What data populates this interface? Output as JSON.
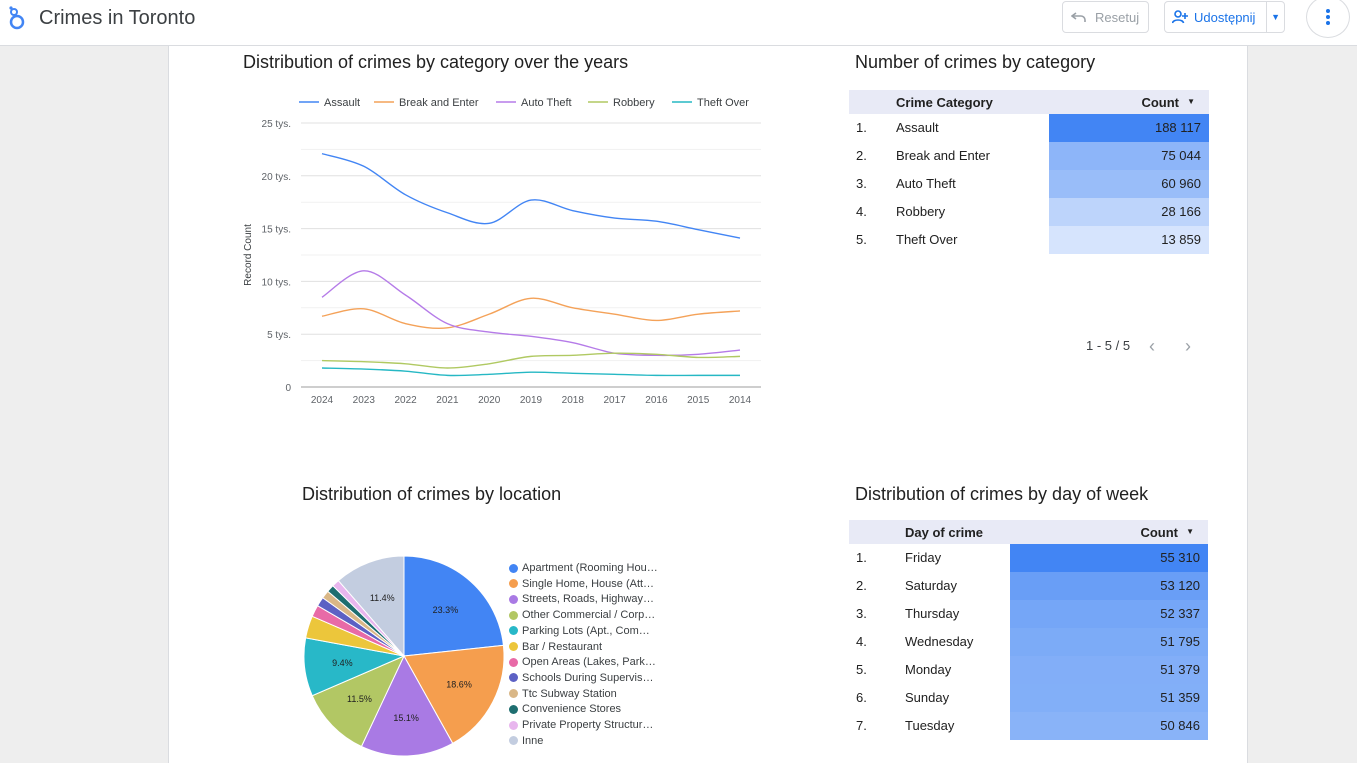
{
  "app": {
    "title": "Crimes in Toronto",
    "reset_label": "Resetuj",
    "share_label": "Udostępnij"
  },
  "charts": {
    "line_title": "Distribution of crimes by category over the years",
    "category_title": "Number of crimes by category",
    "location_title": "Distribution of crimes by location",
    "weekday_title": "Distribution of crimes by day of week"
  },
  "category_table": {
    "col1": "Crime Category",
    "col2": "Count",
    "rows": [
      {
        "n": "1.",
        "name": "Assault",
        "val": "188 117",
        "v": 188117
      },
      {
        "n": "2.",
        "name": "Break and Enter",
        "val": "75 044",
        "v": 75044
      },
      {
        "n": "3.",
        "name": "Auto Theft",
        "val": "60 960",
        "v": 60960
      },
      {
        "n": "4.",
        "name": "Robbery",
        "val": "28 166",
        "v": 28166
      },
      {
        "n": "5.",
        "name": "Theft Over",
        "val": "13 859",
        "v": 13859
      }
    ],
    "pager": "1 - 5 / 5"
  },
  "weekday_table": {
    "col1": "Day of crime",
    "col2": "Count",
    "rows": [
      {
        "n": "1.",
        "name": "Friday",
        "val": "55 310",
        "v": 55310
      },
      {
        "n": "2.",
        "name": "Saturday",
        "val": "53 120",
        "v": 53120
      },
      {
        "n": "3.",
        "name": "Thursday",
        "val": "52 337",
        "v": 52337
      },
      {
        "n": "4.",
        "name": "Wednesday",
        "val": "51 795",
        "v": 51795
      },
      {
        "n": "5.",
        "name": "Monday",
        "val": "51 379",
        "v": 51379
      },
      {
        "n": "6.",
        "name": "Sunday",
        "val": "51 359",
        "v": 51359
      },
      {
        "n": "7.",
        "name": "Tuesday",
        "val": "50 846",
        "v": 50846
      }
    ]
  },
  "chart_data": [
    {
      "type": "line",
      "title": "Distribution of crimes by category over the years",
      "ylabel": "Record Count",
      "x": [
        "2024",
        "2023",
        "2022",
        "2021",
        "2020",
        "2019",
        "2018",
        "2017",
        "2016",
        "2015",
        "2014"
      ],
      "ylim": [
        0,
        25000
      ],
      "yticks": [
        "0",
        "5 tys.",
        "10 tys.",
        "15 tys.",
        "20 tys.",
        "25 tys."
      ],
      "legend": "top",
      "series": [
        {
          "name": "Assault",
          "color": "#4285f4",
          "values": [
            22100,
            20900,
            18200,
            16500,
            15500,
            17700,
            16700,
            16000,
            15700,
            14900,
            14100
          ]
        },
        {
          "name": "Break and Enter",
          "color": "#f4a259",
          "values": [
            6700,
            7400,
            6000,
            5600,
            6900,
            8400,
            7500,
            6900,
            6300,
            6900,
            7200
          ]
        },
        {
          "name": "Auto Theft",
          "color": "#b57be8",
          "values": [
            8500,
            11000,
            8700,
            6000,
            5200,
            4800,
            4200,
            3200,
            3000,
            3100,
            3500
          ]
        },
        {
          "name": "Robbery",
          "color": "#b0c962",
          "values": [
            2500,
            2400,
            2200,
            1800,
            2200,
            2900,
            3000,
            3200,
            3100,
            2800,
            2900
          ]
        },
        {
          "name": "Theft Over",
          "color": "#26b8c4",
          "values": [
            1800,
            1700,
            1500,
            1100,
            1200,
            1400,
            1300,
            1200,
            1100,
            1100,
            1100
          ]
        }
      ]
    },
    {
      "type": "pie",
      "title": "Distribution of crimes by location",
      "slices": [
        {
          "label": "Apartment (Rooming Hou…",
          "value": 23.3,
          "color": "#4285f4",
          "show": "23.3%"
        },
        {
          "label": "Single Home, House (Att…",
          "value": 18.6,
          "color": "#f59e4e",
          "show": "18.6%"
        },
        {
          "label": "Streets, Roads, Highway…",
          "value": 15.1,
          "color": "#a97ae4",
          "show": "15.1%"
        },
        {
          "label": "Other Commercial / Corp…",
          "value": 11.5,
          "color": "#b2c764",
          "show": "11.5%"
        },
        {
          "label": "Parking Lots (Apt., Com…",
          "value": 9.4,
          "color": "#28b8c8",
          "show": "9.4%"
        },
        {
          "label": "Bar / Restaurant",
          "value": 3.6,
          "color": "#ecc63b",
          "show": ""
        },
        {
          "label": "Open Areas (Lakes, Park…",
          "value": 1.9,
          "color": "#e86aa7",
          "show": ""
        },
        {
          "label": "Schools During Supervis…",
          "value": 1.5,
          "color": "#5c61c4",
          "show": ""
        },
        {
          "label": "Ttc Subway Station",
          "value": 1.3,
          "color": "#d9b787",
          "show": ""
        },
        {
          "label": "Convenience Stores",
          "value": 1.2,
          "color": "#1e6e70",
          "show": ""
        },
        {
          "label": "Private Property Structur…",
          "value": 1.2,
          "color": "#e8b6ee",
          "show": ""
        },
        {
          "label": "Inne",
          "value": 11.4,
          "color": "#c3cde0",
          "show": "11.4%"
        }
      ]
    }
  ]
}
